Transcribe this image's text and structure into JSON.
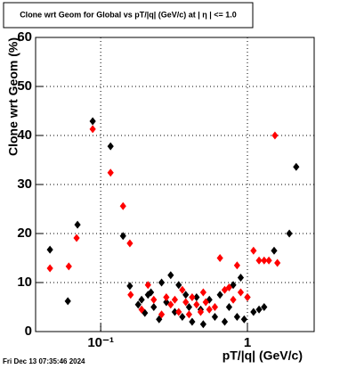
{
  "chart_data": {
    "type": "scatter",
    "title": "Clone wrt Geom for Global vs pT/|q| (GeV/c) at |  η  | <= 1.0",
    "x_label": "pT/|q| (GeV/c)",
    "y_label": "Clone wrt Geom (%)",
    "footer": "Fri Dec 13 07:35:46 2024",
    "xlog": true,
    "xlim": [
      0.036,
      2.85
    ],
    "ylim": [
      0,
      60
    ],
    "xticks": [
      {
        "value": 0.1,
        "label": "10⁻¹"
      },
      1
    ],
    "yticks": [
      0,
      10,
      20,
      30,
      40,
      50,
      60
    ],
    "grid": true,
    "series": [
      {
        "color": "#000000",
        "x": [
          0.0451,
          0.0597,
          0.0695,
          0.0882,
          0.1167,
          0.142,
          0.158,
          0.18,
          0.19,
          0.2,
          0.21,
          0.22,
          0.23,
          0.25,
          0.26,
          0.28,
          0.3,
          0.32,
          0.34,
          0.36,
          0.38,
          0.4,
          0.42,
          0.45,
          0.48,
          0.5,
          0.55,
          0.6,
          0.65,
          0.7,
          0.75,
          0.8,
          0.85,
          0.9,
          0.95,
          1.0,
          1.1,
          1.2,
          1.3,
          1.52,
          1.93,
          2.15
        ],
        "values": [
          16.7,
          6.2,
          21.8,
          42.9,
          37.8,
          19.5,
          9.3,
          5.5,
          6.5,
          3.8,
          7.5,
          8,
          5,
          2.5,
          10,
          6,
          11.5,
          4,
          9.5,
          3,
          7.5,
          5,
          2,
          7,
          4.5,
          1.5,
          6.5,
          3,
          7.5,
          2,
          5,
          9.5,
          3,
          11,
          2.5,
          7,
          4,
          4.5,
          5,
          16.5,
          20,
          33.6
        ]
      },
      {
        "color": "#ff0000",
        "x": [
          0.0451,
          0.0606,
          0.0685,
          0.0882,
          0.1167,
          0.142,
          0.158,
          0.16,
          0.19,
          0.21,
          0.23,
          0.26,
          0.28,
          0.3,
          0.32,
          0.34,
          0.36,
          0.38,
          0.4,
          0.42,
          0.45,
          0.48,
          0.5,
          0.52,
          0.55,
          0.6,
          0.65,
          0.7,
          0.75,
          0.8,
          0.85,
          0.9,
          1.0,
          1.1,
          1.2,
          1.3,
          1.4,
          1.54,
          1.6
        ],
        "values": [
          12.9,
          13.3,
          19.1,
          41.3,
          32.4,
          25.6,
          18,
          7.5,
          4.5,
          9.5,
          6.5,
          3.5,
          7,
          5.5,
          6.5,
          4,
          8.5,
          6,
          3.5,
          7,
          5.5,
          4,
          8,
          6,
          4.5,
          5,
          15,
          8.5,
          9,
          6.5,
          13.5,
          8,
          7,
          16.5,
          14.5,
          14.5,
          14.5,
          40,
          14
        ]
      }
    ]
  }
}
